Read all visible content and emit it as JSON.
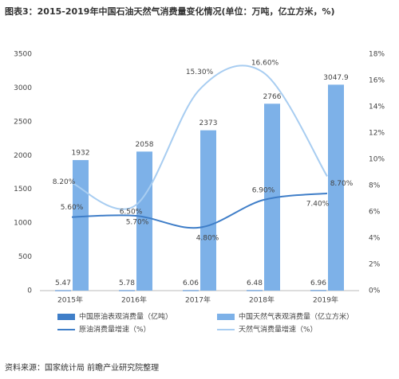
{
  "chart_data": {
    "type": "combo",
    "title": "图表3：2015-2019年中国石油天然气消费量变化情况(单位：万吨，亿立方米，%)",
    "categories": [
      "2015年",
      "2016年",
      "2017年",
      "2018年",
      "2019年"
    ],
    "series": [
      {
        "name": "中国原油表观消费量（亿吨）",
        "type": "bar",
        "color": "#3f7ec8",
        "values": [
          5.47,
          5.78,
          6.06,
          6.48,
          6.96
        ]
      },
      {
        "name": "中国天然气表观消费量（亿立方米）",
        "type": "bar",
        "color": "#7db1e8",
        "values": [
          1932,
          2058,
          2373,
          2766,
          3047.9
        ]
      },
      {
        "name": "原油消费量增速（%）",
        "type": "line",
        "axis": "y2",
        "color": "#3f7ec8",
        "values": [
          5.6,
          5.7,
          4.8,
          6.9,
          7.4
        ],
        "value_labels": [
          "5.60%",
          "5.70%",
          "4.80%",
          "6.90%",
          "7.40%"
        ]
      },
      {
        "name": "天然气消费量增速（%）",
        "type": "line",
        "axis": "y2",
        "color": "#a8cdf1",
        "values": [
          8.2,
          6.5,
          15.3,
          16.6,
          8.7
        ],
        "value_labels": [
          "8.20%",
          "6.50%",
          "15.30%",
          "16.60%",
          "8.70%"
        ]
      }
    ],
    "ylim": [
      0,
      3500
    ],
    "yticks": [
      0,
      500,
      1000,
      1500,
      2000,
      2500,
      3000,
      3500
    ],
    "y2lim": [
      0,
      18
    ],
    "y2ticks": [
      {
        "value": 0,
        "label": "0%"
      },
      {
        "value": 2,
        "label": "2%"
      },
      {
        "value": 4,
        "label": "4%"
      },
      {
        "value": 6,
        "label": "6%"
      },
      {
        "value": 8,
        "label": "8%"
      },
      {
        "value": 10,
        "label": "10%"
      },
      {
        "value": 12,
        "label": "12%"
      },
      {
        "value": 14,
        "label": "14%"
      },
      {
        "value": 16,
        "label": "16%"
      },
      {
        "value": 18,
        "label": "18%"
      }
    ],
    "legend": "bottom",
    "source": "资料来源：国家统计局 前瞻产业研究院整理"
  }
}
